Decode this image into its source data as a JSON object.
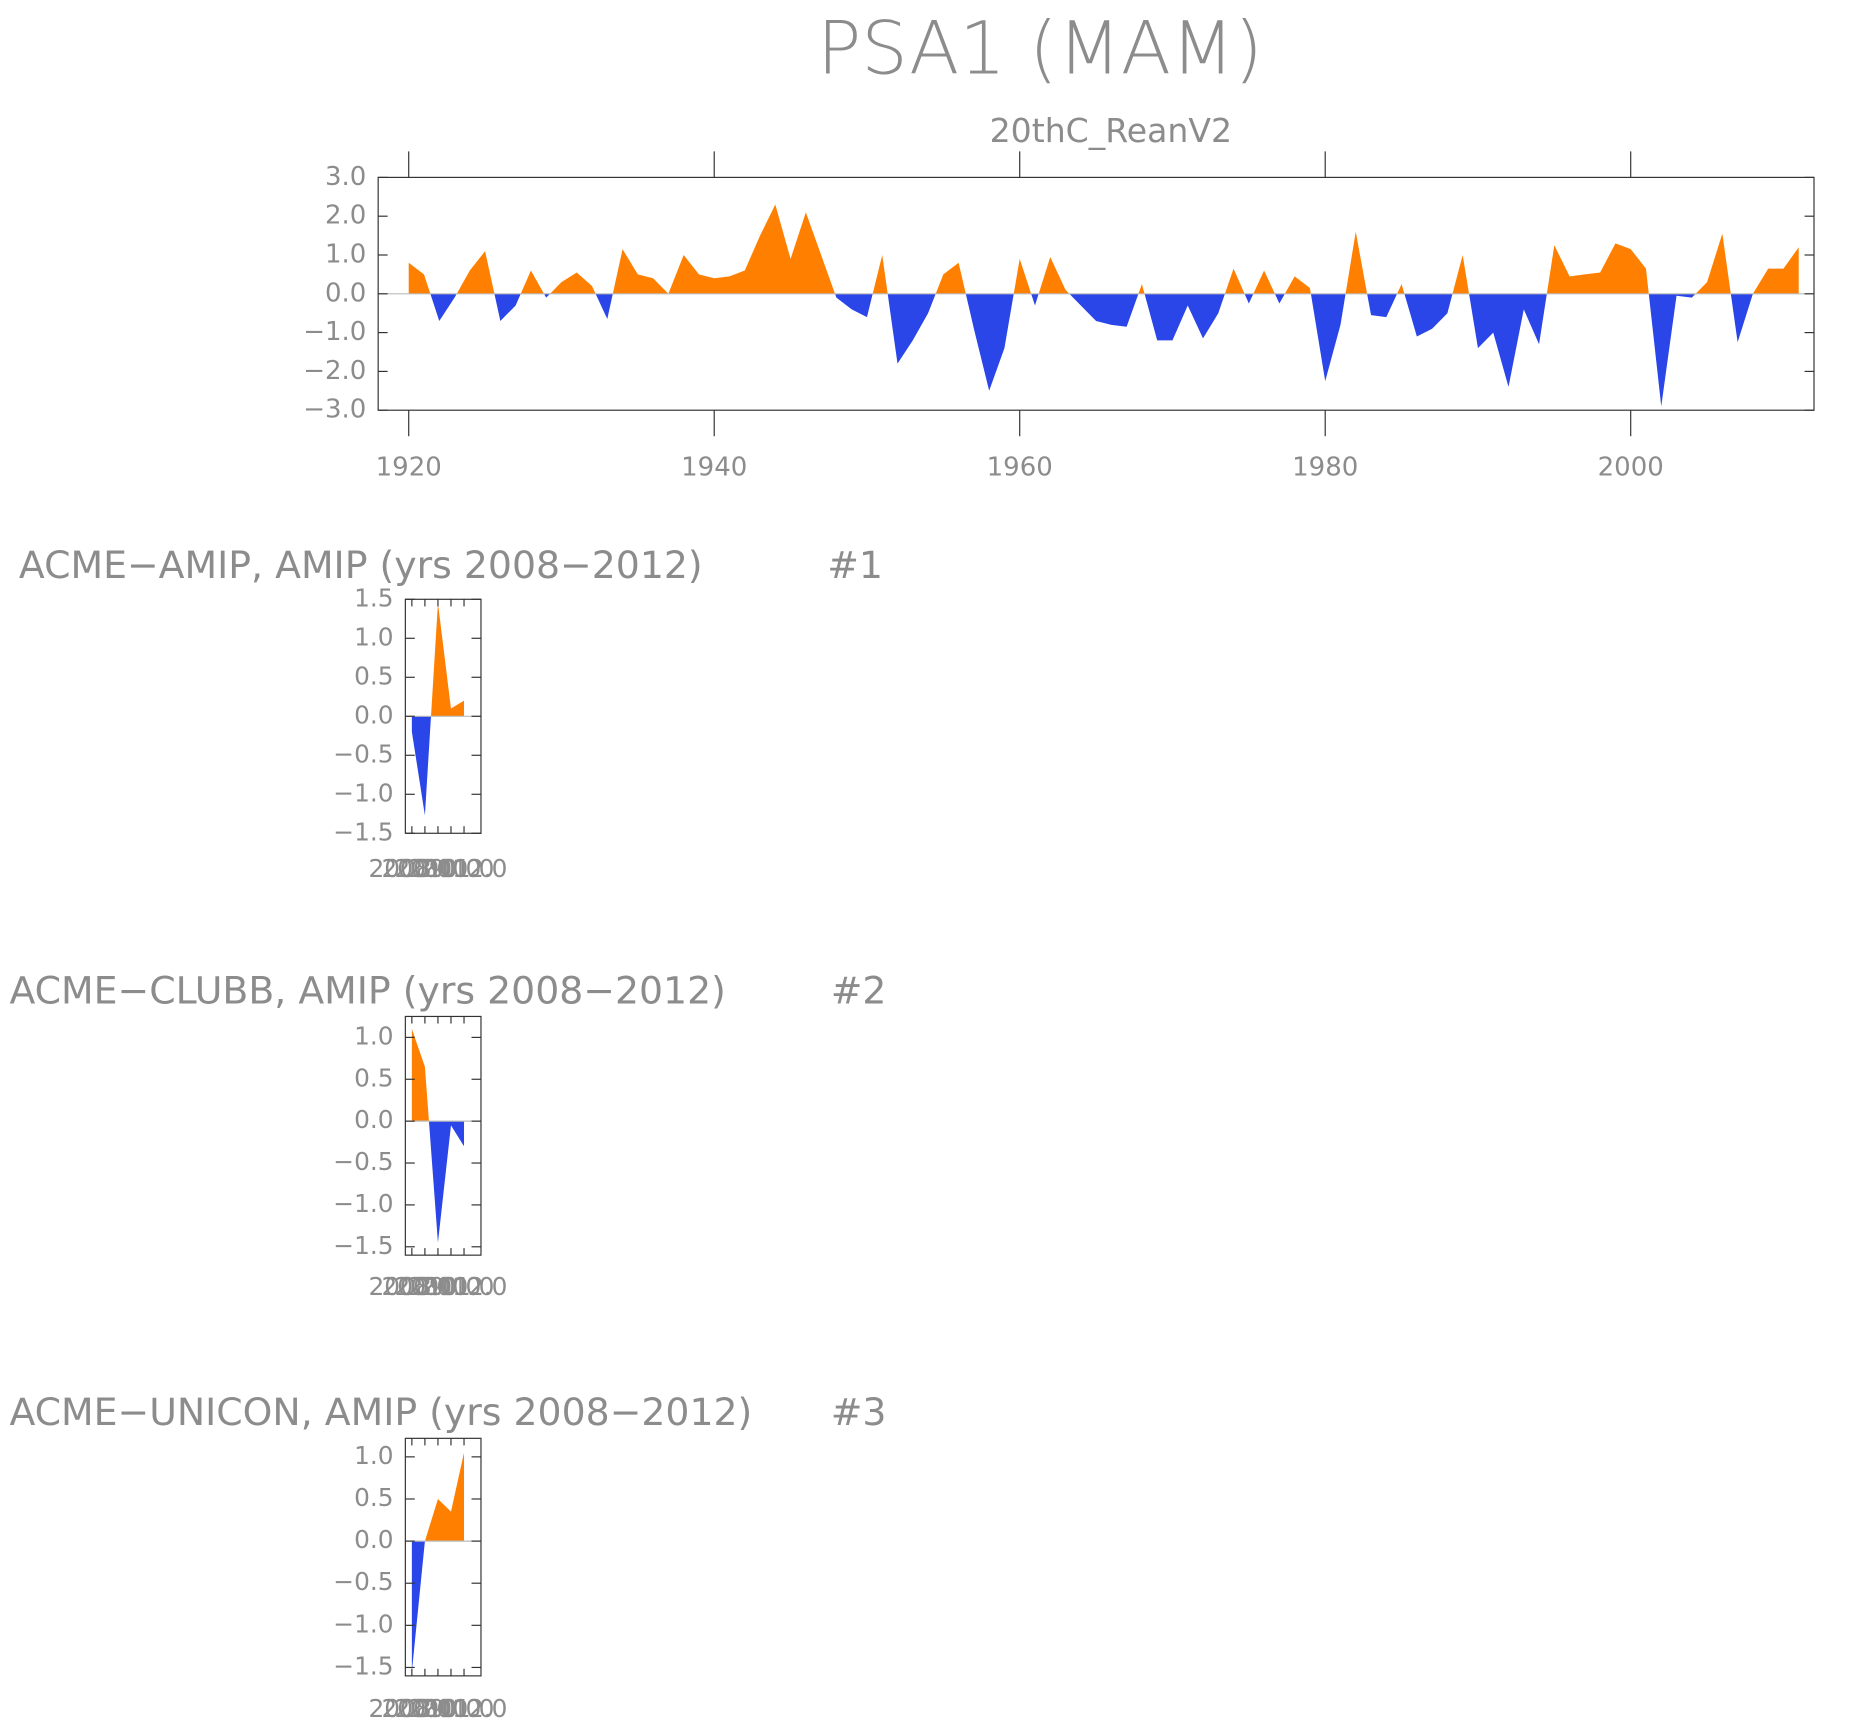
{
  "chart_data": [
    {
      "type": "area",
      "title": "PSA1 (MAM)",
      "subtitle": "20thC_ReanV2",
      "x": [
        1920,
        1921,
        1922,
        1923,
        1924,
        1925,
        1926,
        1927,
        1928,
        1929,
        1930,
        1931,
        1932,
        1933,
        1934,
        1935,
        1936,
        1937,
        1938,
        1939,
        1940,
        1941,
        1942,
        1943,
        1944,
        1945,
        1946,
        1947,
        1948,
        1949,
        1950,
        1951,
        1952,
        1953,
        1954,
        1955,
        1956,
        1957,
        1958,
        1959,
        1960,
        1961,
        1962,
        1963,
        1964,
        1965,
        1966,
        1967,
        1968,
        1969,
        1970,
        1971,
        1972,
        1973,
        1974,
        1975,
        1976,
        1977,
        1978,
        1979,
        1980,
        1981,
        1982,
        1983,
        1984,
        1985,
        1986,
        1987,
        1988,
        1989,
        1990,
        1991,
        1992,
        1993,
        1994,
        1995,
        1996,
        1997,
        1998,
        1999,
        2000,
        2001,
        2002,
        2003,
        2004,
        2005,
        2006,
        2007,
        2008,
        2009,
        2010,
        2011
      ],
      "values": [
        0.8,
        0.5,
        -0.7,
        -0.1,
        0.6,
        1.1,
        -0.7,
        -0.3,
        0.6,
        -0.1,
        0.3,
        0.55,
        0.2,
        -0.65,
        1.15,
        0.5,
        0.4,
        0.0,
        1.0,
        0.5,
        0.4,
        0.45,
        0.6,
        1.5,
        2.3,
        0.9,
        2.1,
        1.0,
        -0.1,
        -0.4,
        -0.6,
        1.0,
        -1.8,
        -1.2,
        -0.5,
        0.5,
        0.8,
        -0.9,
        -2.5,
        -1.4,
        0.9,
        -0.3,
        0.95,
        0.1,
        -0.3,
        -0.7,
        -0.8,
        -0.85,
        0.25,
        -1.2,
        -1.2,
        -0.3,
        -1.15,
        -0.5,
        0.65,
        -0.25,
        0.6,
        -0.25,
        0.45,
        0.15,
        -2.25,
        -0.8,
        1.6,
        -0.55,
        -0.6,
        0.25,
        -1.1,
        -0.9,
        -0.5,
        1.0,
        -1.4,
        -1.0,
        -2.4,
        -0.4,
        -1.3,
        1.25,
        0.45,
        0.5,
        0.55,
        1.3,
        1.15,
        0.65,
        -2.9,
        -0.05,
        -0.1,
        0.3,
        1.55,
        -1.25,
        0.0,
        0.65,
        0.65,
        1.2
      ],
      "above_color": "#ff8000",
      "below_color": "#2a45e8",
      "xlim": [
        1918,
        2012
      ],
      "xticks": [
        1920,
        1940,
        1960,
        1980,
        2000
      ],
      "ylim": [
        -3,
        3
      ],
      "yticks": [
        {
          "value": -3,
          "label": "−3.0"
        },
        {
          "value": -2,
          "label": "−2.0"
        },
        {
          "value": -1,
          "label": "−1.0"
        },
        {
          "value": 0,
          "label": "0.0"
        },
        {
          "value": 1,
          "label": "1.0"
        },
        {
          "value": 2,
          "label": "2.0"
        },
        {
          "value": 3,
          "label": "3.0"
        }
      ]
    },
    {
      "type": "area",
      "title": "ACME−AMIP, AMIP (yrs 2008−2012)",
      "panel_label": "#1",
      "x": [
        2008,
        2009,
        2010,
        2011,
        2012
      ],
      "values": [
        -0.2,
        -1.27,
        1.45,
        0.1,
        0.2
      ],
      "above_color": "#ff8000",
      "below_color": "#2a45e8",
      "xlim": [
        2007.5,
        2013.3
      ],
      "xticks": [
        {
          "value": 2008,
          "label": "2008.0"
        },
        {
          "value": 2009,
          "label": "2009.0"
        },
        {
          "value": 2010,
          "label": "2010.0"
        },
        {
          "value": 2011,
          "label": "2011.0"
        },
        {
          "value": 2012,
          "label": "2012.0"
        }
      ],
      "ylim": [
        -1.5,
        1.5
      ],
      "yticks": [
        {
          "value": -1.5,
          "label": "−1.5"
        },
        {
          "value": -1,
          "label": "−1.0"
        },
        {
          "value": -0.5,
          "label": "−0.5"
        },
        {
          "value": 0,
          "label": "0.0"
        },
        {
          "value": 0.5,
          "label": "0.5"
        },
        {
          "value": 1,
          "label": "1.0"
        },
        {
          "value": 1.5,
          "label": "1.5"
        }
      ]
    },
    {
      "type": "area",
      "title": "ACME−CLUBB, AMIP (yrs 2008−2012)",
      "panel_label": "#2",
      "x": [
        2008,
        2009,
        2010,
        2011,
        2012
      ],
      "values": [
        1.1,
        0.65,
        -1.45,
        -0.05,
        -0.3
      ],
      "above_color": "#ff8000",
      "below_color": "#2a45e8",
      "xlim": [
        2007.5,
        2013.3
      ],
      "xticks": [
        {
          "value": 2008,
          "label": "2008.0"
        },
        {
          "value": 2009,
          "label": "2009.0"
        },
        {
          "value": 2010,
          "label": "2010.0"
        },
        {
          "value": 2011,
          "label": "2011.0"
        },
        {
          "value": 2012,
          "label": "2012.0"
        }
      ],
      "ylim": [
        -1.6,
        1.25
      ],
      "yticks": [
        {
          "value": -1.5,
          "label": "−1.5"
        },
        {
          "value": -1,
          "label": "−1.0"
        },
        {
          "value": -0.5,
          "label": "−0.5"
        },
        {
          "value": 0,
          "label": "0.0"
        },
        {
          "value": 0.5,
          "label": "0.5"
        },
        {
          "value": 1,
          "label": "1.0"
        }
      ]
    },
    {
      "type": "area",
      "title": "ACME−UNICON, AMIP (yrs 2008−2012)",
      "panel_label": "#3",
      "x": [
        2008,
        2009,
        2010,
        2011,
        2012
      ],
      "values": [
        -1.55,
        0.0,
        0.5,
        0.35,
        1.05
      ],
      "above_color": "#ff8000",
      "below_color": "#2a45e8",
      "xlim": [
        2007.5,
        2013.3
      ],
      "xticks": [
        {
          "value": 2008,
          "label": "2008.0"
        },
        {
          "value": 2009,
          "label": "2009.0"
        },
        {
          "value": 2010,
          "label": "2010.0"
        },
        {
          "value": 2011,
          "label": "2011.0"
        },
        {
          "value": 2012,
          "label": "2012.0"
        }
      ],
      "ylim": [
        -1.6,
        1.22
      ],
      "yticks": [
        {
          "value": -1.5,
          "label": "−1.5"
        },
        {
          "value": -1,
          "label": "−1.0"
        },
        {
          "value": -0.5,
          "label": "−0.5"
        },
        {
          "value": 0,
          "label": "0.0"
        },
        {
          "value": 0.5,
          "label": "0.5"
        },
        {
          "value": 1,
          "label": "1.0"
        }
      ]
    }
  ]
}
